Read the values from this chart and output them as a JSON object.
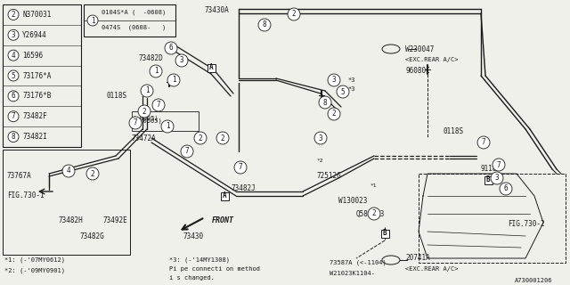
{
  "bg_color": "#f0f0ea",
  "line_color": "#1a1a1a",
  "part_number_ref": "A730001206",
  "parts_table_items": [
    {
      "num": "2",
      "code": "N370031"
    },
    {
      "num": "3",
      "code": "Y26944"
    },
    {
      "num": "4",
      "code": "16596"
    },
    {
      "num": "5",
      "code": "73176*A"
    },
    {
      "num": "6",
      "code": "73176*B"
    },
    {
      "num": "7",
      "code": "73482F"
    },
    {
      "num": "8",
      "code": "73482I"
    }
  ],
  "footnotes_left": [
    "*1: (-'07MY0612)",
    "*2: (-'09MY0901)"
  ],
  "footnotes_right": [
    "*3: (-'14MY1308)",
    "Pi pe connecti on method",
    "i s changed."
  ]
}
